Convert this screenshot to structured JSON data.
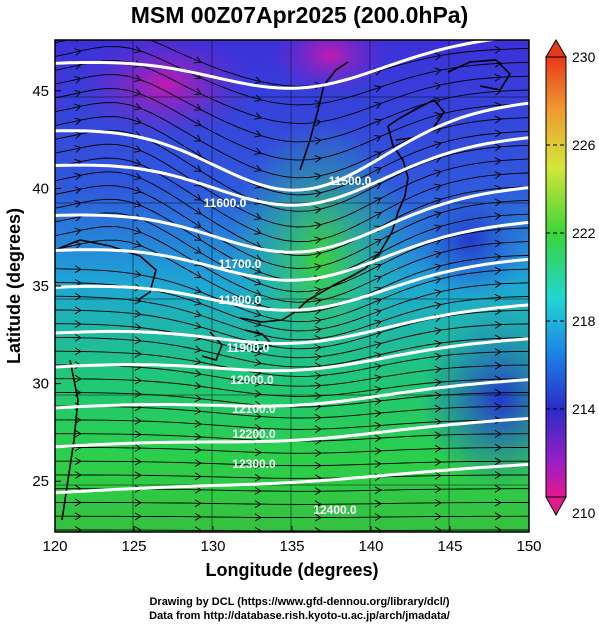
{
  "title": "MSM 00Z07Apr2025 (200.0hPa)",
  "map": {
    "xlabel": "Longitude (degrees)",
    "ylabel": "Latitude (degrees)",
    "x_ticks": [
      "120",
      "125",
      "130",
      "135",
      "140",
      "145",
      "150"
    ],
    "y_ticks": [
      "25",
      "30",
      "35",
      "40",
      "45"
    ],
    "xlim": [
      120,
      150
    ],
    "ylim": [
      22.4,
      47.6
    ]
  },
  "contours": {
    "labels": [
      "11600.0",
      "11500.0",
      "11700.0",
      "11800.0",
      "11900.0",
      "12000.0",
      "12100.0",
      "12200.0",
      "12300.0",
      "12400.0"
    ],
    "color": "#ffffff"
  },
  "colorbar": {
    "min": "210",
    "max": "230",
    "tick_labels": [
      "230",
      "226",
      "222",
      "218",
      "214",
      "210"
    ],
    "colors": [
      "#d41c9c",
      "#2a3ad0",
      "#1fd8e6",
      "#20cc3a",
      "#c8e62a",
      "#e63a1a"
    ]
  },
  "credits": {
    "line1": "Drawing by DCL (https://www.gfd-dennou.org/library/dcl/)",
    "line2": "Data from http://database.rish.kyoto-u.ac.jp/arch/jmadata/"
  }
}
